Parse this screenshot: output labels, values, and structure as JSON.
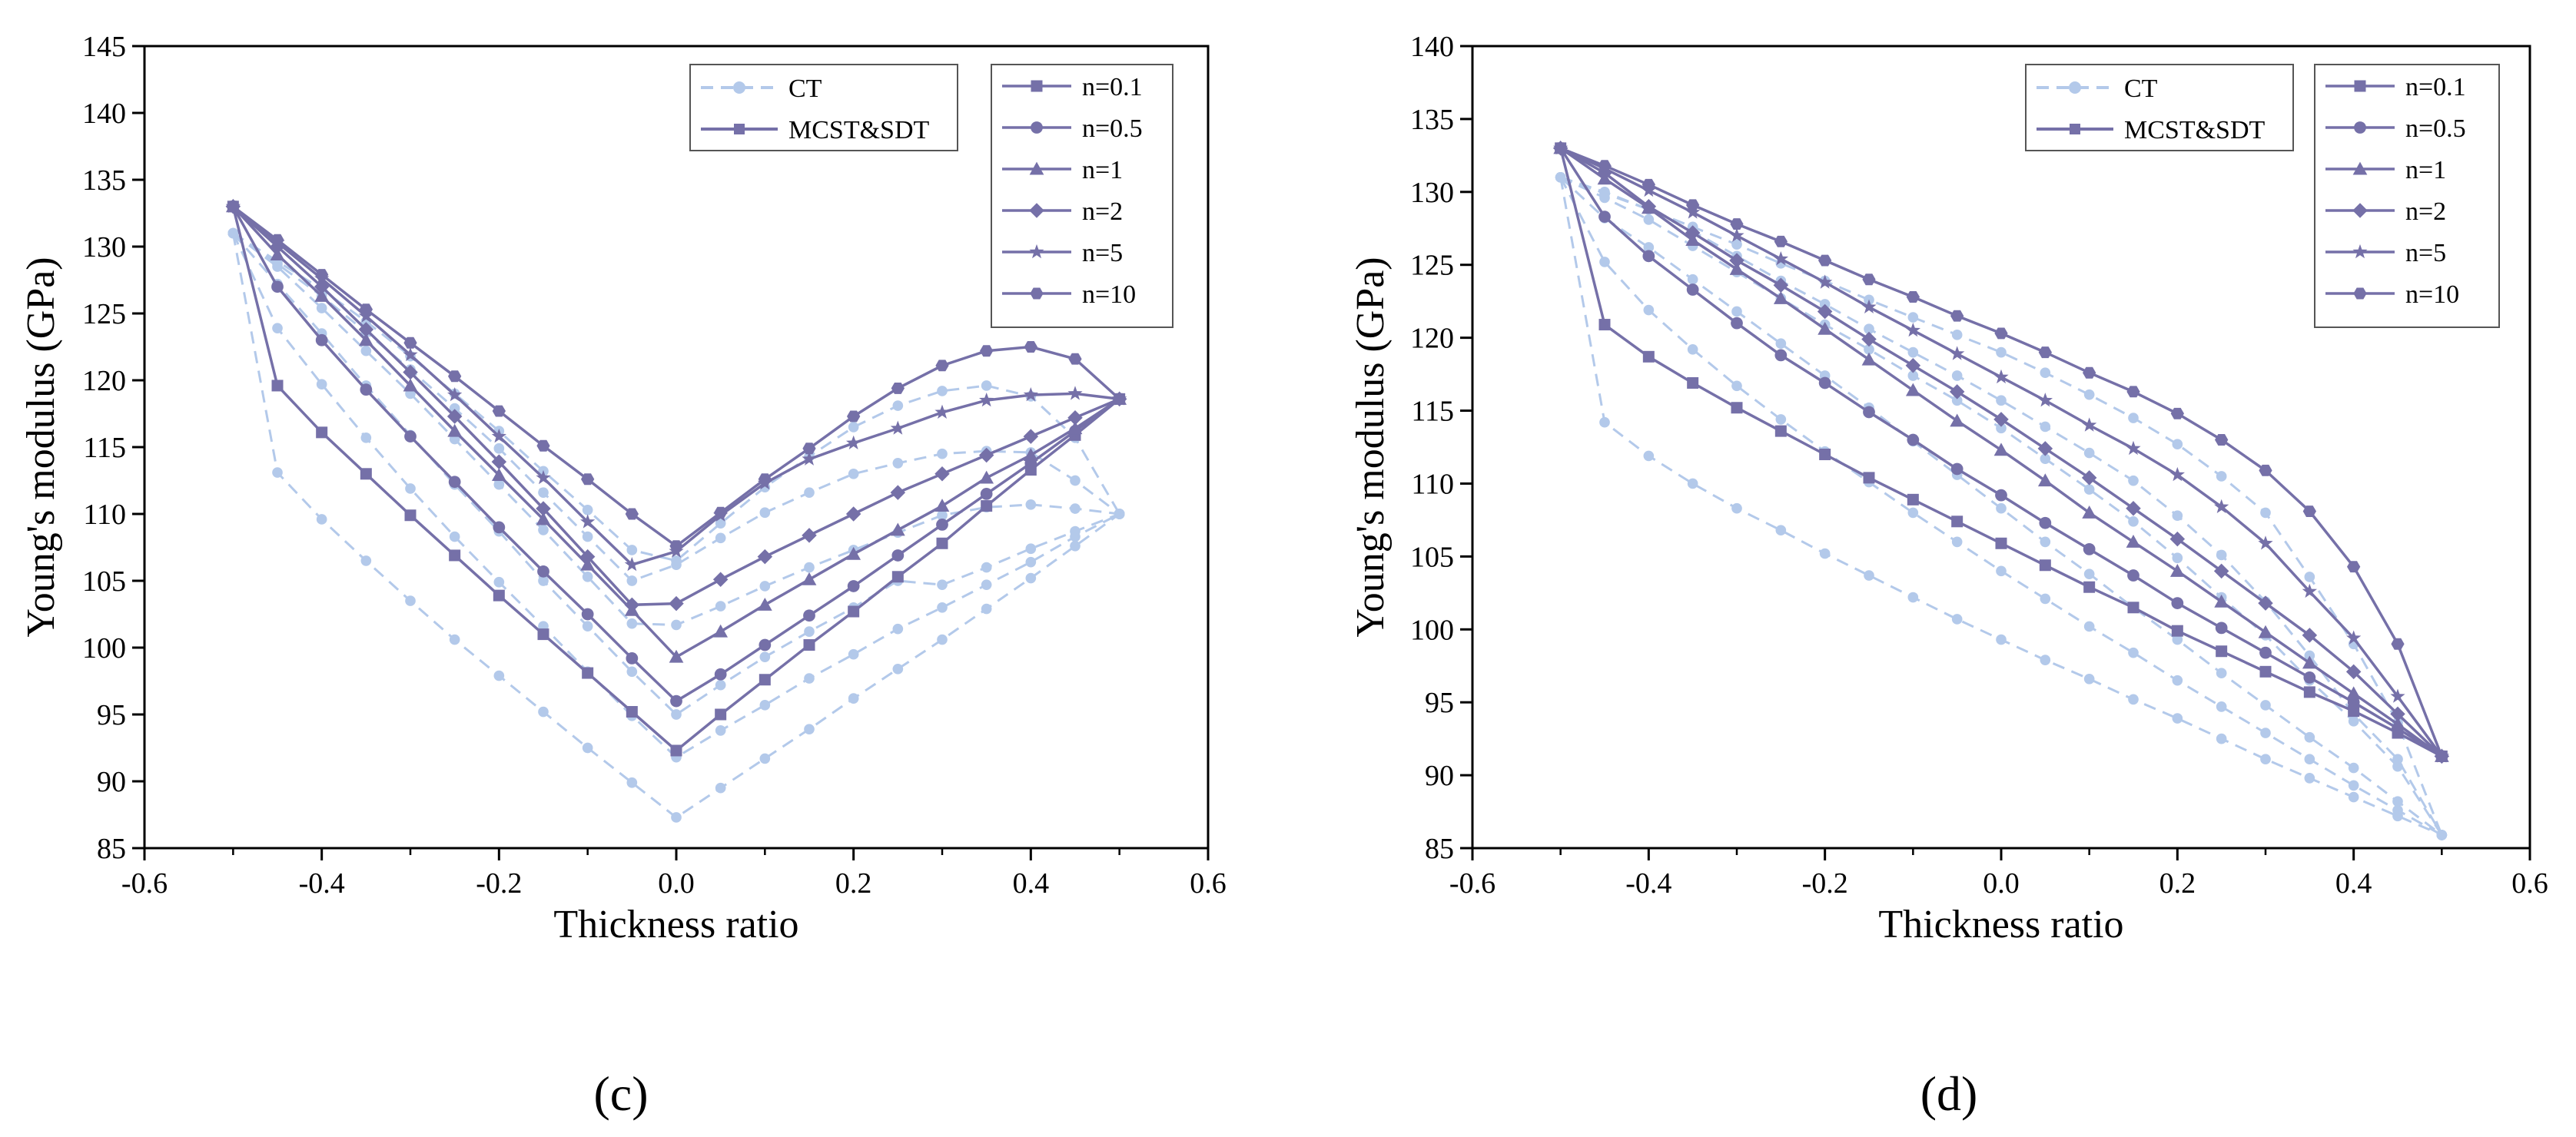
{
  "colors": {
    "ct": "#b3c9ea",
    "mcst": "#7570a8",
    "axis": "#000000"
  },
  "legend_labels": {
    "ct": "CT",
    "mcst": "MCST&SDT"
  },
  "chart_data": [
    {
      "type": "line",
      "panel_label": "(c)",
      "xlabel": "Thickness ratio",
      "ylabel": "Young's modulus (GPa)",
      "xlim": [
        -0.6,
        0.6
      ],
      "ylim": [
        85,
        145
      ],
      "xticks": [
        -0.6,
        -0.4,
        -0.2,
        0.0,
        0.2,
        0.4,
        0.6
      ],
      "xtick_labels": [
        "-0.6",
        "-0.4",
        "-0.2",
        "0.0",
        "0.2",
        "0.4",
        "0.6"
      ],
      "yticks": [
        85,
        90,
        95,
        100,
        105,
        110,
        115,
        120,
        125,
        130,
        135,
        140,
        145
      ],
      "ytick_labels": [
        "85",
        "90",
        "95",
        "100",
        "105",
        "110",
        "115",
        "120",
        "125",
        "130",
        "135",
        "140",
        "145"
      ],
      "x": [
        -0.5,
        -0.45,
        -0.4,
        -0.35,
        -0.3,
        -0.25,
        -0.2,
        -0.15,
        -0.1,
        -0.05,
        0.0,
        0.05,
        0.1,
        0.15,
        0.2,
        0.25,
        0.3,
        0.35,
        0.4,
        0.45,
        0.5
      ],
      "series": [
        {
          "name": "n=0.1",
          "marker": "square",
          "mcst": [
            133.0,
            119.6,
            116.1,
            113.0,
            109.9,
            106.9,
            103.9,
            101.0,
            98.1,
            95.2,
            92.3,
            95.0,
            97.6,
            100.2,
            102.7,
            105.3,
            107.8,
            110.6,
            113.3,
            115.9,
            118.6
          ],
          "ct": [
            131.0,
            113.1,
            109.6,
            106.5,
            103.5,
            100.6,
            97.9,
            95.2,
            92.5,
            89.9,
            87.3,
            89.5,
            91.7,
            93.9,
            96.2,
            98.4,
            100.6,
            102.9,
            105.2,
            107.6,
            110.0
          ]
        },
        {
          "name": "n=0.5",
          "marker": "circle",
          "mcst": [
            133.0,
            127.0,
            123.0,
            119.3,
            115.8,
            112.4,
            109.0,
            105.7,
            102.5,
            99.2,
            96.0,
            98.0,
            100.2,
            102.4,
            104.6,
            106.9,
            109.2,
            111.5,
            113.8,
            116.2,
            118.6
          ],
          "ct": [
            131.0,
            123.9,
            119.7,
            115.7,
            111.9,
            108.3,
            104.9,
            101.6,
            98.2,
            94.9,
            91.8,
            93.8,
            95.7,
            97.7,
            99.5,
            101.4,
            103.0,
            104.7,
            106.4,
            108.3,
            110.0
          ]
        },
        {
          "name": "n=1",
          "marker": "triangle",
          "mcst": [
            133.0,
            129.4,
            126.3,
            123.0,
            119.6,
            116.2,
            112.9,
            109.6,
            106.2,
            102.8,
            99.3,
            101.2,
            103.2,
            105.1,
            107.0,
            108.8,
            110.6,
            112.7,
            114.4,
            116.4,
            118.6
          ],
          "ct": [
            131.0,
            127.2,
            123.5,
            119.6,
            115.9,
            112.2,
            108.7,
            105.0,
            101.6,
            98.2,
            95.0,
            97.2,
            99.3,
            101.2,
            103.0,
            105.0,
            104.7,
            106.0,
            107.4,
            108.7,
            110.0
          ]
        },
        {
          "name": "n=2",
          "marker": "diamond",
          "mcst": [
            133.0,
            130.0,
            127.0,
            123.8,
            120.6,
            117.3,
            113.9,
            110.4,
            106.8,
            103.2,
            103.3,
            105.1,
            106.8,
            108.4,
            110.0,
            111.6,
            113.0,
            114.4,
            115.8,
            117.2,
            118.6
          ],
          "ct": [
            131.0,
            128.5,
            125.4,
            122.2,
            119.0,
            115.6,
            112.2,
            108.8,
            105.3,
            101.8,
            101.7,
            103.1,
            104.6,
            106.0,
            107.3,
            108.6,
            109.9,
            110.5,
            110.7,
            110.4,
            110.0
          ]
        },
        {
          "name": "n=5",
          "marker": "star",
          "mcst": [
            133.0,
            130.3,
            127.6,
            124.8,
            121.9,
            118.9,
            115.8,
            112.7,
            109.4,
            106.2,
            107.2,
            109.9,
            112.3,
            114.1,
            115.3,
            116.4,
            117.6,
            118.5,
            118.9,
            119.0,
            118.6
          ],
          "ct": [
            131.0,
            128.7,
            126.3,
            123.6,
            120.8,
            117.9,
            114.9,
            111.6,
            108.3,
            105.0,
            106.2,
            108.2,
            110.1,
            111.6,
            113.0,
            113.8,
            114.5,
            114.7,
            114.6,
            112.5,
            110.0
          ]
        },
        {
          "name": "n=10",
          "marker": "hexagon",
          "mcst": [
            133.0,
            130.5,
            127.9,
            125.3,
            122.8,
            120.3,
            117.7,
            115.1,
            112.6,
            110.0,
            107.6,
            110.1,
            112.6,
            114.9,
            117.3,
            119.4,
            121.1,
            122.2,
            122.5,
            121.6,
            118.6
          ],
          "ct": [
            131.0,
            128.9,
            126.8,
            124.4,
            121.8,
            119.0,
            116.2,
            113.2,
            110.3,
            107.3,
            106.5,
            109.3,
            112.0,
            114.3,
            116.5,
            118.1,
            119.2,
            119.6,
            118.8,
            115.7,
            110.0
          ]
        }
      ]
    },
    {
      "type": "line",
      "panel_label": "(d)",
      "xlabel": "Thickness ratio",
      "ylabel": "Young's modulus (GPa)",
      "xlim": [
        -0.6,
        0.6
      ],
      "ylim": [
        85,
        140
      ],
      "xticks": [
        -0.6,
        -0.4,
        -0.2,
        0.0,
        0.2,
        0.4,
        0.6
      ],
      "xtick_labels": [
        "-0.6",
        "-0.4",
        "-0.2",
        "0.0",
        "0.2",
        "0.4",
        "0.6"
      ],
      "yticks": [
        85,
        90,
        95,
        100,
        105,
        110,
        115,
        120,
        125,
        130,
        135,
        140
      ],
      "ytick_labels": [
        "85",
        "90",
        "95",
        "100",
        "105",
        "110",
        "115",
        "120",
        "125",
        "130",
        "135",
        "140"
      ],
      "x": [
        -0.5,
        -0.45,
        -0.4,
        -0.35,
        -0.3,
        -0.25,
        -0.2,
        -0.15,
        -0.1,
        -0.05,
        0.0,
        0.05,
        0.1,
        0.15,
        0.2,
        0.25,
        0.3,
        0.35,
        0.4,
        0.45,
        0.5
      ],
      "series": [
        {
          "name": "n=0.1",
          "marker": "square",
          "mcst": [
            133.0,
            120.9,
            118.7,
            116.9,
            115.2,
            113.6,
            112.0,
            110.4,
            108.9,
            107.4,
            105.9,
            104.4,
            102.9,
            101.5,
            99.9,
            98.5,
            97.1,
            95.7,
            94.4,
            92.9,
            91.3
          ],
          "ct": [
            131.0,
            114.2,
            111.9,
            110.0,
            108.3,
            106.8,
            105.2,
            103.7,
            102.2,
            100.7,
            99.3,
            97.9,
            96.6,
            95.2,
            93.9,
            92.5,
            91.1,
            89.8,
            88.5,
            87.2,
            85.9
          ]
        },
        {
          "name": "n=0.5",
          "marker": "circle",
          "mcst": [
            133.0,
            128.3,
            125.6,
            123.3,
            121.0,
            118.8,
            116.9,
            114.9,
            113.0,
            111.0,
            109.2,
            107.3,
            105.5,
            103.7,
            101.8,
            100.1,
            98.4,
            96.7,
            95.0,
            93.2,
            91.3
          ],
          "ct": [
            131.0,
            125.2,
            121.9,
            119.2,
            116.7,
            114.4,
            112.2,
            110.1,
            108.0,
            106.0,
            104.0,
            102.1,
            100.2,
            98.4,
            96.5,
            94.7,
            92.9,
            91.1,
            89.3,
            87.6,
            85.9
          ]
        },
        {
          "name": "n=1",
          "marker": "triangle",
          "mcst": [
            133.0,
            130.9,
            128.9,
            126.7,
            124.7,
            122.7,
            120.6,
            118.5,
            116.4,
            114.3,
            112.3,
            110.2,
            108.0,
            106.0,
            104.0,
            101.9,
            99.8,
            97.7,
            95.6,
            93.5,
            91.3
          ],
          "ct": [
            131.0,
            128.2,
            126.2,
            124.0,
            121.8,
            119.6,
            117.4,
            115.2,
            112.9,
            110.6,
            108.3,
            106.0,
            103.8,
            101.5,
            99.3,
            97.0,
            94.8,
            92.6,
            90.5,
            88.2,
            85.9
          ]
        },
        {
          "name": "n=2",
          "marker": "diamond",
          "mcst": [
            133.0,
            131.3,
            129.0,
            127.2,
            125.3,
            123.6,
            121.8,
            119.9,
            118.1,
            116.3,
            114.4,
            112.4,
            110.4,
            108.3,
            106.2,
            104.0,
            101.8,
            99.6,
            97.1,
            94.2,
            91.3
          ],
          "ct": [
            131.0,
            129.6,
            128.1,
            126.3,
            124.5,
            122.7,
            120.9,
            119.2,
            117.4,
            115.7,
            113.8,
            111.7,
            109.6,
            107.4,
            104.9,
            102.2,
            99.6,
            96.5,
            93.7,
            90.6,
            85.9
          ]
        },
        {
          "name": "n=5",
          "marker": "star",
          "mcst": [
            133.0,
            131.6,
            130.1,
            128.6,
            127.0,
            125.4,
            123.8,
            122.1,
            120.5,
            118.9,
            117.3,
            115.7,
            114.0,
            112.4,
            110.6,
            108.4,
            105.9,
            102.6,
            99.4,
            95.4,
            91.3
          ],
          "ct": [
            131.0,
            130.0,
            128.8,
            127.3,
            125.6,
            123.9,
            122.3,
            120.6,
            119.0,
            117.4,
            115.7,
            113.9,
            112.1,
            110.2,
            107.8,
            105.1,
            101.9,
            98.2,
            94.2,
            91.1,
            85.9
          ]
        },
        {
          "name": "n=10",
          "marker": "hexagon",
          "mcst": [
            133.0,
            131.8,
            130.5,
            129.1,
            127.8,
            126.6,
            125.3,
            124.0,
            122.8,
            121.5,
            120.3,
            119.0,
            117.6,
            116.3,
            114.8,
            113.0,
            110.9,
            108.1,
            104.3,
            99.0,
            91.3
          ],
          "ct": [
            131.0,
            129.9,
            128.8,
            127.6,
            126.4,
            125.1,
            123.9,
            122.6,
            121.4,
            120.2,
            119.0,
            117.6,
            116.1,
            114.5,
            112.7,
            110.5,
            108.0,
            103.6,
            99.0,
            93.6,
            85.9
          ]
        }
      ]
    }
  ]
}
